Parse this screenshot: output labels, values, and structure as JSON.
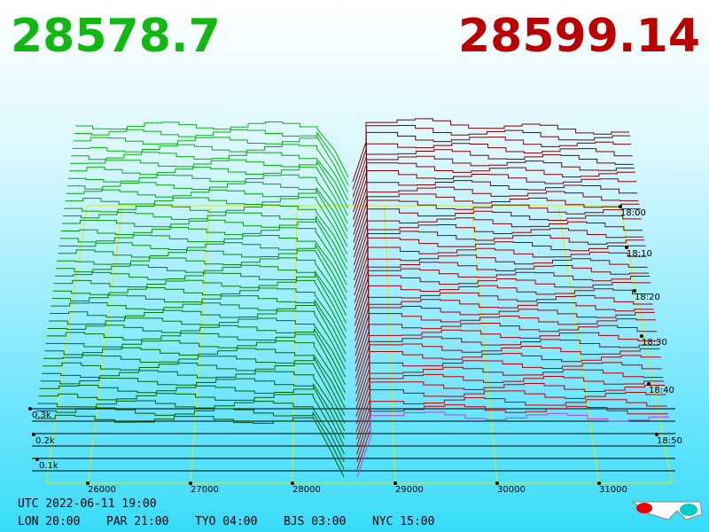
{
  "header": {
    "bid": "28578.7",
    "ask": "28599.14"
  },
  "price_axis": {
    "labels": [
      "26000",
      "27000",
      "28000",
      "29000",
      "30000",
      "31000"
    ]
  },
  "depth_axis": {
    "labels": [
      "0.3k",
      "0.2k",
      "0.1k"
    ]
  },
  "time_axis": {
    "labels": [
      "18:00",
      "18:10",
      "18:20",
      "18:30",
      "18:40",
      "18:50"
    ]
  },
  "footer": {
    "utc": "UTC 2022-06-11 19:00",
    "cities": [
      "LON 20:00",
      "PAR 21:00",
      "TYO 04:00",
      "BJS 03:00",
      "NYC 15:00"
    ]
  }
}
